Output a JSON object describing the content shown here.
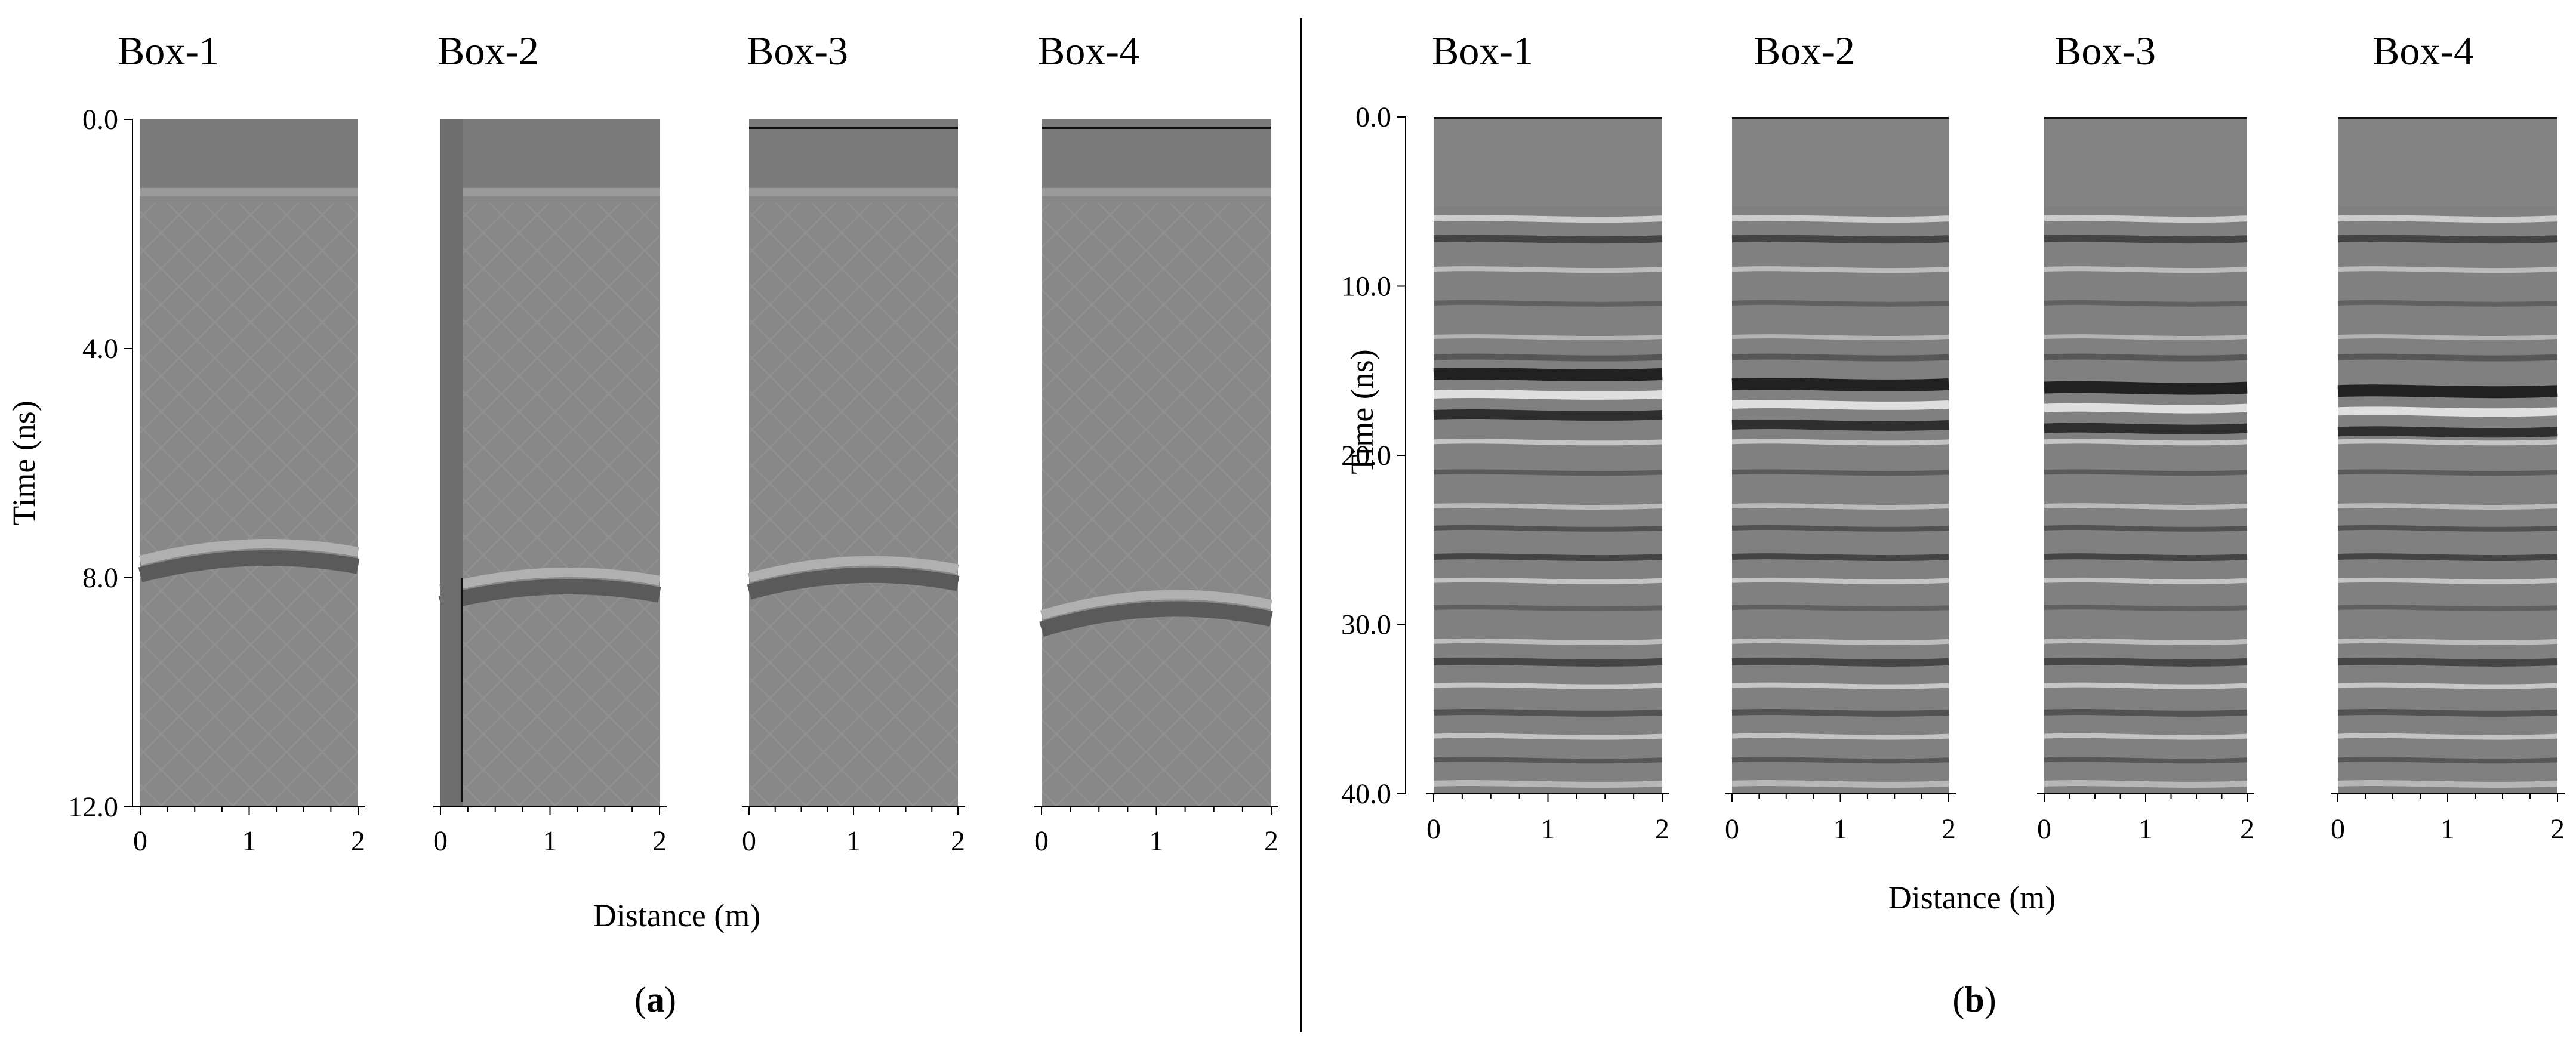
{
  "colors": {
    "axis": "#000000",
    "background": "#ffffff",
    "divider": "#000000"
  },
  "chart_data": [
    {
      "type": "heatmap",
      "panel_label": "a",
      "xlabel": "Distance (m)",
      "ylabel": "Time (ns)",
      "xlim": [
        0,
        2
      ],
      "ylim": [
        0,
        12
      ],
      "y_inverted": true,
      "x_ticks": [
        0,
        1,
        2
      ],
      "y_ticks": [
        "0.0",
        "4.0",
        "8.0",
        "12.0"
      ],
      "series": [
        {
          "name": "Box-1",
          "reflector_time_ns": 7.7,
          "curvature_ns": 0.25
        },
        {
          "name": "Box-2",
          "reflector_time_ns": 8.2,
          "curvature_ns": 0.25
        },
        {
          "name": "Box-3",
          "reflector_time_ns": 8.0,
          "curvature_ns": 0.25
        },
        {
          "name": "Box-4",
          "reflector_time_ns": 8.6,
          "curvature_ns": 0.3
        }
      ]
    },
    {
      "type": "heatmap",
      "panel_label": "b",
      "xlabel": "Distance (m)",
      "ylabel": "Time (ns)",
      "xlim": [
        0,
        2
      ],
      "ylim": [
        0,
        40
      ],
      "y_inverted": true,
      "x_ticks": [
        0,
        1,
        2
      ],
      "y_ticks": [
        "0.0",
        "10.0",
        "20.0",
        "30.0",
        "40.0"
      ],
      "series": [
        {
          "name": "Box-1",
          "strong_reflector_time_ns": 15.2
        },
        {
          "name": "Box-2",
          "strong_reflector_time_ns": 15.8
        },
        {
          "name": "Box-3",
          "strong_reflector_time_ns": 16.0
        },
        {
          "name": "Box-4",
          "strong_reflector_time_ns": 16.2
        }
      ]
    }
  ]
}
